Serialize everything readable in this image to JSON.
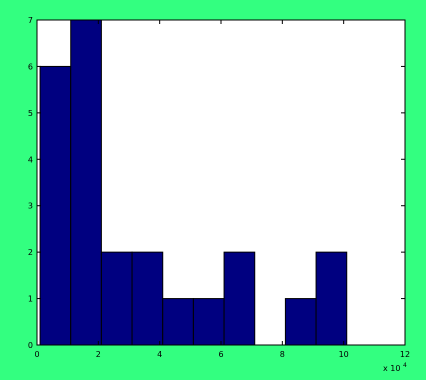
{
  "colors": {
    "figure_background": "#33ff80",
    "axes_background": "#ffffff",
    "bar_fill": "#000080",
    "bar_edge": "#000000",
    "axis": "#000000"
  },
  "chart_data": {
    "type": "bar",
    "title": "",
    "xlabel": "",
    "ylabel": "",
    "x_exponent_label": "x 10",
    "x_exponent": "4",
    "xlim": [
      0,
      12
    ],
    "ylim": [
      0,
      7
    ],
    "x_ticks": [
      "0",
      "2",
      "4",
      "6",
      "8",
      "10",
      "12"
    ],
    "y_ticks": [
      "0",
      "1",
      "2",
      "3",
      "4",
      "5",
      "6",
      "7"
    ],
    "grid": false,
    "legend": "none",
    "bin_width": 1,
    "bins": [
      {
        "x_start": 0.1,
        "value": 6
      },
      {
        "x_start": 1.1,
        "value": 7
      },
      {
        "x_start": 2.1,
        "value": 2
      },
      {
        "x_start": 3.1,
        "value": 2
      },
      {
        "x_start": 4.1,
        "value": 1
      },
      {
        "x_start": 5.1,
        "value": 1
      },
      {
        "x_start": 6.1,
        "value": 2
      },
      {
        "x_start": 7.1,
        "value": 0
      },
      {
        "x_start": 8.1,
        "value": 1
      },
      {
        "x_start": 9.1,
        "value": 2
      }
    ]
  }
}
